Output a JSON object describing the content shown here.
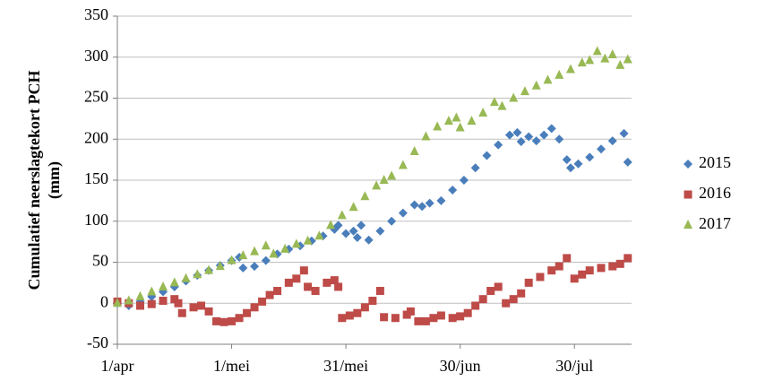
{
  "chart_data": {
    "type": "scatter",
    "y_label": [
      "Cumulatief neerslagtekort PCH",
      "(mm)"
    ],
    "xlim": [
      0,
      135
    ],
    "ylim": [
      -50,
      350
    ],
    "xticks": [
      {
        "value": 0,
        "label": "1/apr"
      },
      {
        "value": 30,
        "label": "1/mei"
      },
      {
        "value": 60,
        "label": "31/mei"
      },
      {
        "value": 90,
        "label": "30/jun"
      },
      {
        "value": 120,
        "label": "30/jul"
      }
    ],
    "yticks": [
      -50,
      0,
      50,
      100,
      150,
      200,
      250,
      300,
      350
    ],
    "grid": true,
    "legend": "right",
    "series": [
      {
        "name": "2015",
        "color": "#4a7ebb",
        "marker": "diamond",
        "x": [
          0,
          3,
          6,
          9,
          12,
          15,
          18,
          21,
          24,
          27,
          30,
          32,
          33,
          36,
          39,
          42,
          45,
          48,
          51,
          54,
          57,
          58,
          60,
          62,
          63,
          64,
          66,
          69,
          72,
          75,
          78,
          80,
          82,
          85,
          88,
          91,
          94,
          97,
          100,
          103,
          105,
          106,
          108,
          110,
          112,
          114,
          116,
          118,
          119,
          121,
          124,
          127,
          130,
          133,
          134
        ],
        "values": [
          0,
          -3,
          2,
          8,
          14,
          20,
          27,
          34,
          40,
          46,
          52,
          56,
          43,
          45,
          52,
          60,
          66,
          70,
          76,
          82,
          90,
          95,
          85,
          88,
          80,
          95,
          77,
          88,
          100,
          110,
          120,
          118,
          122,
          125,
          138,
          150,
          165,
          180,
          193,
          205,
          208,
          197,
          203,
          198,
          205,
          213,
          200,
          175,
          165,
          170,
          178,
          188,
          198,
          207,
          172
        ]
      },
      {
        "name": "2016",
        "color": "#be4b48",
        "marker": "square",
        "x": [
          0,
          3,
          6,
          9,
          12,
          15,
          16,
          17,
          20,
          22,
          24,
          26,
          28,
          30,
          32,
          34,
          36,
          38,
          40,
          42,
          45,
          47,
          49,
          50,
          52,
          55,
          57,
          58,
          59,
          61,
          63,
          65,
          67,
          69,
          70,
          73,
          76,
          77,
          79,
          81,
          83,
          85,
          88,
          90,
          92,
          94,
          96,
          98,
          100,
          102,
          104,
          106,
          108,
          111,
          114,
          116,
          118,
          120,
          122,
          124,
          127,
          130,
          132,
          134
        ],
        "values": [
          2,
          0,
          -3,
          -1,
          3,
          5,
          0,
          -12,
          -5,
          -3,
          -10,
          -22,
          -23,
          -22,
          -18,
          -12,
          -5,
          2,
          10,
          15,
          25,
          30,
          40,
          20,
          15,
          25,
          28,
          20,
          -18,
          -15,
          -12,
          -5,
          3,
          15,
          -17,
          -18,
          -14,
          -10,
          -22,
          -22,
          -18,
          -15,
          -18,
          -16,
          -12,
          -3,
          5,
          15,
          20,
          0,
          5,
          12,
          25,
          32,
          40,
          45,
          55,
          30,
          35,
          40,
          43,
          45,
          48,
          55
        ]
      },
      {
        "name": "2017",
        "color": "#98b954",
        "marker": "triangle",
        "x": [
          0,
          3,
          6,
          9,
          12,
          15,
          18,
          21,
          24,
          27,
          30,
          33,
          36,
          39,
          41,
          44,
          47,
          50,
          53,
          56,
          59,
          62,
          65,
          68,
          70,
          72,
          75,
          78,
          81,
          84,
          87,
          89,
          90,
          93,
          96,
          99,
          101,
          104,
          107,
          110,
          113,
          116,
          119,
          122,
          124,
          126,
          128,
          130,
          132,
          134
        ],
        "values": [
          0,
          3,
          8,
          14,
          20,
          25,
          30,
          35,
          40,
          45,
          52,
          58,
          63,
          70,
          60,
          66,
          72,
          76,
          82,
          95,
          107,
          117,
          130,
          143,
          150,
          155,
          168,
          185,
          203,
          215,
          222,
          226,
          214,
          222,
          232,
          245,
          240,
          250,
          258,
          265,
          272,
          278,
          285,
          293,
          296,
          307,
          298,
          303,
          290,
          297
        ]
      }
    ]
  }
}
